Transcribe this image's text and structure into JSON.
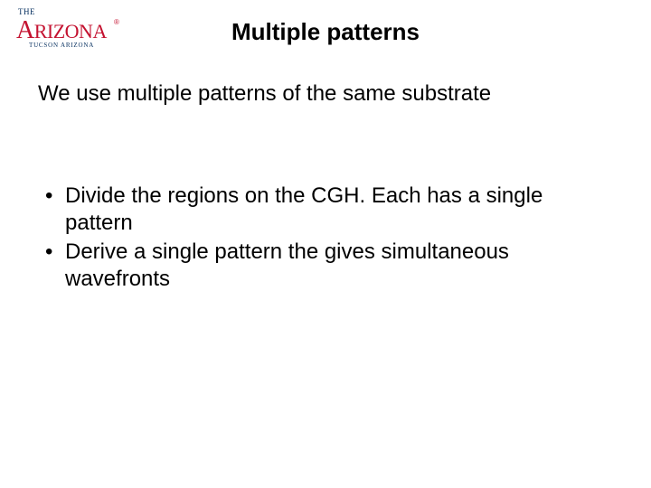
{
  "logo": {
    "the": "THE",
    "arizona_prefix": "A",
    "arizona_rest": "RIZONA",
    "registered": "®",
    "tucson": "TUCSON ARIZONA",
    "color_red": "#c41230",
    "color_navy": "#002b5c"
  },
  "slide": {
    "title": "Multiple patterns",
    "intro": "We use multiple patterns of the same substrate",
    "bullets": [
      "Divide the regions on the CGH.  Each has a single pattern",
      "Derive a single pattern the gives simultaneous wavefronts"
    ],
    "title_fontsize": 26,
    "body_fontsize": 24,
    "text_color": "#000000",
    "background_color": "#ffffff"
  }
}
